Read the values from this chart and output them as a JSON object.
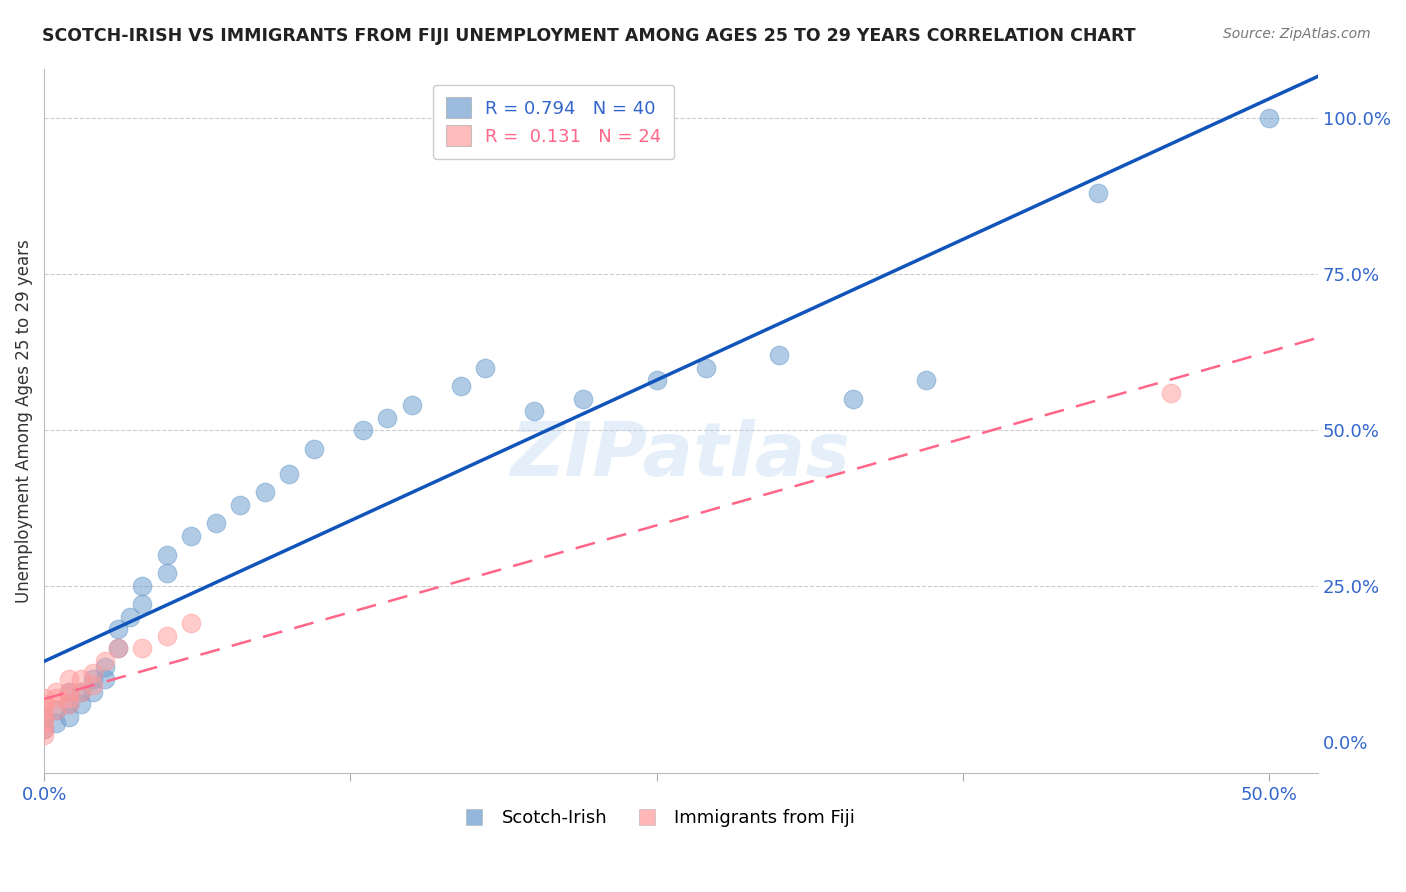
{
  "title": "SCOTCH-IRISH VS IMMIGRANTS FROM FIJI UNEMPLOYMENT AMONG AGES 25 TO 29 YEARS CORRELATION CHART",
  "source": "Source: ZipAtlas.com",
  "xlabel_bottom_labels": [
    "0.0%",
    "",
    "50.0%"
  ],
  "xlabel_bottom_ticks": [
    0.0,
    0.125,
    0.25,
    0.375,
    0.5
  ],
  "ylabel_right": [
    "0.0%",
    "25.0%",
    "50.0%",
    "75.0%",
    "100.0%"
  ],
  "ylabel_left": "Unemployment Among Ages 25 to 29 years",
  "xlim": [
    0.0,
    0.52
  ],
  "ylim": [
    -0.05,
    1.08
  ],
  "legend1_R": "0.794",
  "legend1_N": "40",
  "legend2_R": "0.131",
  "legend2_N": "24",
  "scotch_irish_color": "#6699CC",
  "fiji_color": "#FF9999",
  "trendline_scotch_color": "#1155BB",
  "trendline_fiji_color": "#FF6688",
  "watermark": "ZIPatlas",
  "scotch_irish_x": [
    0.0,
    0.0,
    0.005,
    0.005,
    0.01,
    0.01,
    0.01,
    0.015,
    0.015,
    0.02,
    0.02,
    0.025,
    0.025,
    0.03,
    0.03,
    0.035,
    0.04,
    0.04,
    0.05,
    0.05,
    0.06,
    0.07,
    0.08,
    0.09,
    0.1,
    0.11,
    0.13,
    0.14,
    0.15,
    0.17,
    0.18,
    0.2,
    0.22,
    0.25,
    0.27,
    0.3,
    0.33,
    0.36,
    0.43,
    0.5
  ],
  "scotch_irish_y": [
    0.02,
    0.04,
    0.03,
    0.05,
    0.04,
    0.06,
    0.08,
    0.06,
    0.08,
    0.08,
    0.1,
    0.1,
    0.12,
    0.15,
    0.18,
    0.2,
    0.22,
    0.25,
    0.27,
    0.3,
    0.33,
    0.35,
    0.38,
    0.4,
    0.43,
    0.47,
    0.5,
    0.52,
    0.54,
    0.57,
    0.6,
    0.53,
    0.55,
    0.58,
    0.6,
    0.62,
    0.55,
    0.58,
    0.88,
    1.0
  ],
  "fiji_x": [
    0.0,
    0.0,
    0.0,
    0.0,
    0.0,
    0.0,
    0.0,
    0.005,
    0.005,
    0.005,
    0.01,
    0.01,
    0.01,
    0.01,
    0.015,
    0.015,
    0.02,
    0.02,
    0.025,
    0.03,
    0.04,
    0.05,
    0.06,
    0.46
  ],
  "fiji_y": [
    0.01,
    0.02,
    0.03,
    0.04,
    0.05,
    0.06,
    0.07,
    0.05,
    0.07,
    0.08,
    0.06,
    0.07,
    0.08,
    0.1,
    0.08,
    0.1,
    0.09,
    0.11,
    0.13,
    0.15,
    0.15,
    0.17,
    0.19,
    0.56
  ]
}
